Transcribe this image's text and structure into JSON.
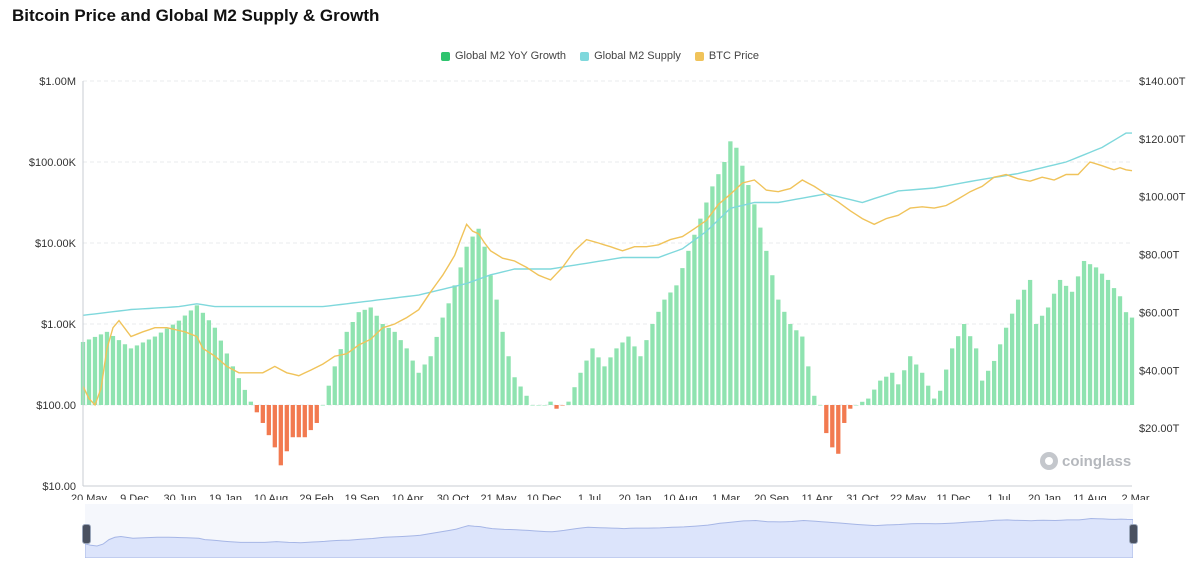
{
  "title": "Bitcoin Price and Global M2 Supply & Growth",
  "watermark": "coinglass",
  "colors": {
    "growth_positive": "#8fe3b0",
    "growth_negative": "#f27a50",
    "m2_supply": "#7fd8dc",
    "btc_price": "#f0c35a",
    "navigator_fill": "#dce4fb",
    "navigator_line": "#a6b6e6"
  },
  "chart_data": {
    "type": "bar",
    "title": "Bitcoin Price and Global M2 Supply & Growth",
    "legend": {
      "position": "top-center",
      "entries": [
        "Global M2 YoY Growth",
        "Global M2 Supply",
        "BTC Price"
      ]
    },
    "x_ticks": [
      "20 May",
      "9 Dec",
      "30 Jun",
      "19 Jan",
      "10 Aug",
      "29 Feb",
      "19 Sep",
      "10 Apr",
      "30 Oct",
      "21 May",
      "10 Dec",
      "1 Jul",
      "20 Jan",
      "10 Aug",
      "1 Mar",
      "20 Sep",
      "11 Apr",
      "31 Oct",
      "22 May",
      "11 Dec",
      "1 Jul",
      "20 Jan",
      "11 Aug",
      "2 Mar"
    ],
    "left_axis": {
      "scale": "log",
      "ticks": [
        "$1.00M",
        "$100.00K",
        "$10.00K",
        "$1.00K",
        "$100.00",
        "$10.00"
      ],
      "range": [
        10,
        1000000
      ]
    },
    "right_axis": {
      "scale": "linear",
      "ticks": [
        "$140.00T",
        "$120.00T",
        "$100.00T",
        "$80.00T",
        "$60.00T",
        "$40.00T",
        "$20.00T"
      ],
      "range": [
        0,
        140
      ]
    },
    "grid": true,
    "series": [
      {
        "name": "Global M2 YoY Growth",
        "type": "bar",
        "axis": "left",
        "note_units": "bar height shown on log scale relative to the $100 baseline",
        "points": [
          [
            0,
            600
          ],
          [
            4,
            800
          ],
          [
            8,
            500
          ],
          [
            12,
            700
          ],
          [
            16,
            1100
          ],
          [
            19,
            1700
          ],
          [
            22,
            900
          ],
          [
            25,
            300
          ],
          [
            28,
            110
          ],
          [
            30,
            60
          ],
          [
            32,
            30
          ],
          [
            33,
            18
          ],
          [
            35,
            40
          ],
          [
            37,
            40
          ],
          [
            39,
            60
          ],
          [
            40,
            100
          ],
          [
            42,
            300
          ],
          [
            44,
            800
          ],
          [
            46,
            1400
          ],
          [
            48,
            1600
          ],
          [
            50,
            1000
          ],
          [
            52,
            800
          ],
          [
            54,
            500
          ],
          [
            56,
            250
          ],
          [
            58,
            400
          ],
          [
            60,
            1200
          ],
          [
            61,
            1800
          ],
          [
            62,
            3000
          ],
          [
            63,
            5000
          ],
          [
            64,
            9000
          ],
          [
            65,
            12000
          ],
          [
            66,
            15000
          ],
          [
            67,
            9000
          ],
          [
            68,
            4000
          ],
          [
            69,
            2000
          ],
          [
            70,
            800
          ],
          [
            71,
            400
          ],
          [
            72,
            220
          ],
          [
            74,
            130
          ],
          [
            75,
            100
          ],
          [
            77,
            100
          ],
          [
            78,
            110
          ],
          [
            79,
            90
          ],
          [
            81,
            110
          ],
          [
            83,
            250
          ],
          [
            85,
            500
          ],
          [
            87,
            300
          ],
          [
            89,
            500
          ],
          [
            91,
            700
          ],
          [
            93,
            400
          ],
          [
            95,
            1000
          ],
          [
            97,
            2000
          ],
          [
            99,
            3000
          ],
          [
            101,
            8000
          ],
          [
            103,
            20000
          ],
          [
            105,
            50000
          ],
          [
            107,
            100000
          ],
          [
            108,
            180000
          ],
          [
            109,
            150000
          ],
          [
            110,
            90000
          ],
          [
            112,
            30000
          ],
          [
            114,
            8000
          ],
          [
            116,
            2000
          ],
          [
            118,
            1000
          ],
          [
            120,
            700
          ],
          [
            121,
            300
          ],
          [
            122,
            130
          ],
          [
            123,
            100
          ],
          [
            124,
            45
          ],
          [
            125,
            30
          ],
          [
            126,
            25
          ],
          [
            127,
            60
          ],
          [
            128,
            90
          ],
          [
            129,
            100
          ],
          [
            131,
            120
          ],
          [
            133,
            200
          ],
          [
            135,
            250
          ],
          [
            136,
            180
          ],
          [
            138,
            400
          ],
          [
            140,
            250
          ],
          [
            142,
            120
          ],
          [
            143,
            150
          ],
          [
            145,
            500
          ],
          [
            147,
            1000
          ],
          [
            149,
            500
          ],
          [
            150,
            200
          ],
          [
            152,
            350
          ],
          [
            154,
            900
          ],
          [
            156,
            2000
          ],
          [
            158,
            3500
          ],
          [
            159,
            1000
          ],
          [
            161,
            1600
          ],
          [
            163,
            3500
          ],
          [
            165,
            2500
          ],
          [
            167,
            6000
          ],
          [
            169,
            5000
          ],
          [
            171,
            3500
          ],
          [
            173,
            2200
          ],
          [
            174,
            1400
          ],
          [
            175,
            1200
          ]
        ]
      },
      {
        "name": "Global M2 Supply",
        "type": "line",
        "axis": "right",
        "units": "trillions USD",
        "points": [
          [
            0,
            59
          ],
          [
            8,
            61
          ],
          [
            16,
            62
          ],
          [
            19,
            63
          ],
          [
            22,
            62
          ],
          [
            30,
            62
          ],
          [
            40,
            62
          ],
          [
            48,
            64
          ],
          [
            56,
            66
          ],
          [
            64,
            70
          ],
          [
            68,
            73
          ],
          [
            72,
            75
          ],
          [
            78,
            75
          ],
          [
            84,
            77
          ],
          [
            90,
            79
          ],
          [
            96,
            79
          ],
          [
            100,
            82
          ],
          [
            104,
            88
          ],
          [
            108,
            96
          ],
          [
            112,
            98
          ],
          [
            116,
            98
          ],
          [
            124,
            101
          ],
          [
            130,
            98
          ],
          [
            136,
            102
          ],
          [
            142,
            103
          ],
          [
            150,
            106
          ],
          [
            156,
            108
          ],
          [
            164,
            112
          ],
          [
            170,
            117
          ],
          [
            174,
            122
          ],
          [
            175,
            122
          ]
        ]
      },
      {
        "name": "BTC Price",
        "type": "line",
        "axis": "left",
        "units": "USD",
        "points": [
          [
            0,
            170
          ],
          [
            1,
            120
          ],
          [
            2,
            100
          ],
          [
            3,
            160
          ],
          [
            4,
            500
          ],
          [
            5,
            900
          ],
          [
            6,
            1100
          ],
          [
            8,
            700
          ],
          [
            10,
            800
          ],
          [
            12,
            900
          ],
          [
            14,
            900
          ],
          [
            17,
            800
          ],
          [
            19,
            700
          ],
          [
            20,
            500
          ],
          [
            22,
            400
          ],
          [
            24,
            300
          ],
          [
            26,
            250
          ],
          [
            28,
            250
          ],
          [
            30,
            250
          ],
          [
            32,
            300
          ],
          [
            34,
            250
          ],
          [
            36,
            230
          ],
          [
            38,
            270
          ],
          [
            40,
            320
          ],
          [
            42,
            400
          ],
          [
            44,
            430
          ],
          [
            46,
            550
          ],
          [
            48,
            650
          ],
          [
            50,
            900
          ],
          [
            52,
            1000
          ],
          [
            54,
            1200
          ],
          [
            56,
            1500
          ],
          [
            58,
            2500
          ],
          [
            60,
            4000
          ],
          [
            62,
            7000
          ],
          [
            63,
            11000
          ],
          [
            64,
            17000
          ],
          [
            65,
            14000
          ],
          [
            66,
            13000
          ],
          [
            67,
            10000
          ],
          [
            68,
            8000
          ],
          [
            70,
            6500
          ],
          [
            72,
            6000
          ],
          [
            74,
            5000
          ],
          [
            76,
            4000
          ],
          [
            78,
            3500
          ],
          [
            80,
            5000
          ],
          [
            82,
            8000
          ],
          [
            84,
            11000
          ],
          [
            86,
            10000
          ],
          [
            88,
            9000
          ],
          [
            90,
            8000
          ],
          [
            92,
            9000
          ],
          [
            94,
            9000
          ],
          [
            96,
            9500
          ],
          [
            98,
            11000
          ],
          [
            100,
            12000
          ],
          [
            102,
            15000
          ],
          [
            104,
            19000
          ],
          [
            106,
            30000
          ],
          [
            108,
            40000
          ],
          [
            110,
            55000
          ],
          [
            112,
            60000
          ],
          [
            114,
            45000
          ],
          [
            116,
            43000
          ],
          [
            118,
            47000
          ],
          [
            120,
            60000
          ],
          [
            122,
            50000
          ],
          [
            124,
            40000
          ],
          [
            126,
            32000
          ],
          [
            128,
            25000
          ],
          [
            130,
            20000
          ],
          [
            132,
            17000
          ],
          [
            134,
            20000
          ],
          [
            136,
            22000
          ],
          [
            138,
            27000
          ],
          [
            140,
            28000
          ],
          [
            142,
            27000
          ],
          [
            144,
            29000
          ],
          [
            146,
            35000
          ],
          [
            148,
            43000
          ],
          [
            150,
            50000
          ],
          [
            152,
            65000
          ],
          [
            154,
            70000
          ],
          [
            156,
            62000
          ],
          [
            158,
            58000
          ],
          [
            160,
            65000
          ],
          [
            162,
            60000
          ],
          [
            164,
            70000
          ],
          [
            166,
            70000
          ],
          [
            168,
            100000
          ],
          [
            169,
            95000
          ],
          [
            170,
            90000
          ],
          [
            172,
            80000
          ],
          [
            173,
            85000
          ],
          [
            174,
            80000
          ],
          [
            175,
            78000
          ]
        ]
      }
    ]
  }
}
